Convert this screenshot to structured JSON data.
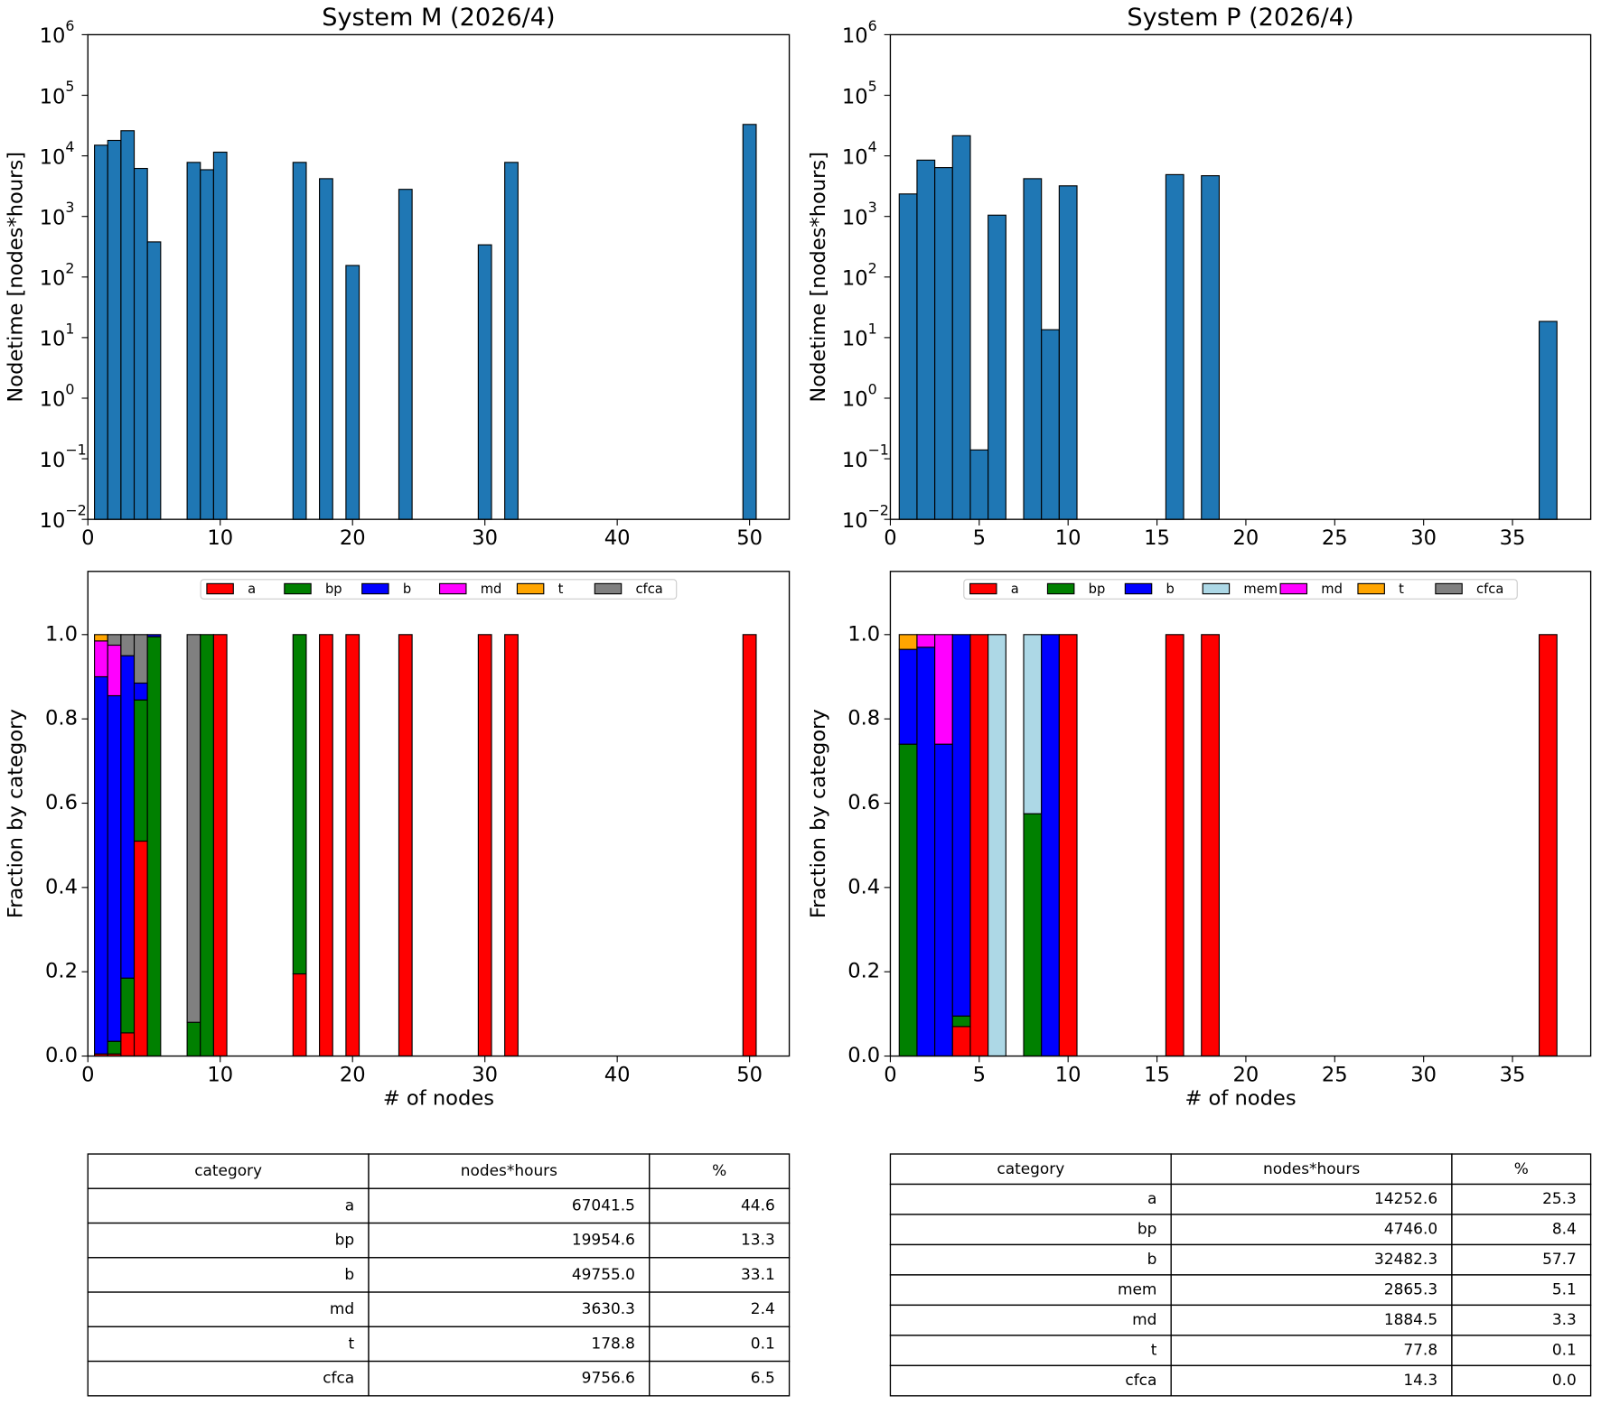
{
  "chart_data": [
    {
      "type": "bar",
      "title": "System M (2026/4)",
      "y_label": "Nodetime [nodes*hours]",
      "x": [
        1,
        2,
        3,
        4,
        5,
        8,
        9,
        10,
        16,
        18,
        20,
        24,
        30,
        32,
        50
      ],
      "values": [
        15000,
        18000,
        26000,
        6200,
        380,
        7800,
        5900,
        11500,
        7800,
        4200,
        155,
        2800,
        340,
        7800,
        33000
      ],
      "color": "#1f77b4",
      "edgecolor": "#000000",
      "log_scale": true,
      "xlim": [
        0,
        53
      ],
      "xticks": [
        0,
        10,
        20,
        30,
        40,
        50
      ],
      "ylim": [
        0.01,
        1000000
      ],
      "yticks": [
        {
          "value": 0.01,
          "label": "10",
          "exponent": "−2"
        },
        {
          "value": 0.1,
          "label": "10",
          "exponent": "−1"
        },
        {
          "value": 1,
          "label": "10",
          "exponent": "0"
        },
        {
          "value": 10,
          "label": "10",
          "exponent": "1"
        },
        {
          "value": 100,
          "label": "10",
          "exponent": "2"
        },
        {
          "value": 1000,
          "label": "10",
          "exponent": "3"
        },
        {
          "value": 10000,
          "label": "10",
          "exponent": "4"
        },
        {
          "value": 100000,
          "label": "10",
          "exponent": "5"
        },
        {
          "value": 1000000,
          "label": "10",
          "exponent": "6"
        }
      ]
    },
    {
      "type": "bar",
      "title": "System P (2026/4)",
      "y_label": "Nodetime [nodes*hours]",
      "x": [
        1,
        2,
        3,
        4,
        5,
        6,
        8,
        9,
        10,
        16,
        18,
        37
      ],
      "values": [
        2350,
        8500,
        6400,
        21500,
        0.14,
        1050,
        4200,
        13.5,
        3200,
        4900,
        4700,
        18.5
      ],
      "color": "#1f77b4",
      "edgecolor": "#000000",
      "log_scale": true,
      "xlim": [
        0,
        39.4
      ],
      "xticks": [
        0,
        5,
        10,
        15,
        20,
        25,
        30,
        35
      ],
      "ylim": [
        0.01,
        1000000
      ],
      "yticks": [
        {
          "value": 0.01,
          "label": "10",
          "exponent": "−2"
        },
        {
          "value": 0.1,
          "label": "10",
          "exponent": "−1"
        },
        {
          "value": 1,
          "label": "10",
          "exponent": "0"
        },
        {
          "value": 10,
          "label": "10",
          "exponent": "1"
        },
        {
          "value": 100,
          "label": "10",
          "exponent": "2"
        },
        {
          "value": 1000,
          "label": "10",
          "exponent": "3"
        },
        {
          "value": 10000,
          "label": "10",
          "exponent": "4"
        },
        {
          "value": 100000,
          "label": "10",
          "exponent": "5"
        },
        {
          "value": 1000000,
          "label": "10",
          "exponent": "6"
        }
      ]
    },
    {
      "type": "stacked_bar",
      "y_label": "Fraction by category",
      "x_label": "# of nodes",
      "x": [
        1,
        2,
        3,
        4,
        5,
        8,
        9,
        10,
        16,
        18,
        20,
        24,
        30,
        32,
        50
      ],
      "series": [
        {
          "name": "a",
          "color": "#ff0000",
          "values": [
            0.005,
            0.005,
            0.055,
            0.51,
            0,
            0,
            0,
            1,
            0.195,
            1,
            1,
            1,
            1,
            1,
            1
          ]
        },
        {
          "name": "bp",
          "color": "#008000",
          "values": [
            0,
            0.03,
            0.13,
            0.335,
            0.995,
            0.08,
            1,
            0,
            0.805,
            0,
            0,
            0,
            0,
            0,
            0
          ]
        },
        {
          "name": "b",
          "color": "#0000ff",
          "values": [
            0.895,
            0.82,
            0.765,
            0.04,
            0.005,
            0,
            0,
            0,
            0,
            0,
            0,
            0,
            0,
            0,
            0
          ]
        },
        {
          "name": "md",
          "color": "#ff00ff",
          "values": [
            0.085,
            0.12,
            0,
            0,
            0,
            0,
            0,
            0,
            0,
            0,
            0,
            0,
            0,
            0,
            0
          ]
        },
        {
          "name": "t",
          "color": "#ffa500",
          "values": [
            0.015,
            0,
            0,
            0,
            0,
            0,
            0,
            0,
            0,
            0,
            0,
            0,
            0,
            0,
            0
          ]
        },
        {
          "name": "cfca",
          "color": "#808080",
          "values": [
            0,
            0.025,
            0.05,
            0.115,
            0,
            0.92,
            0,
            0,
            0,
            0,
            0,
            0,
            0,
            0,
            0
          ]
        }
      ],
      "edgecolor": "#000000",
      "legend": "upper center",
      "xlim": [
        0,
        53
      ],
      "xticks": [
        0,
        10,
        20,
        30,
        40,
        50
      ],
      "ylim": [
        0,
        1.15
      ],
      "yticks": [
        {
          "value": 0,
          "label": "0.0"
        },
        0.2,
        0.4,
        0.6,
        0.8,
        {
          "value": 1,
          "label": "1.0"
        }
      ]
    },
    {
      "type": "stacked_bar",
      "y_label": "Fraction by category",
      "x_label": "# of nodes",
      "x": [
        1,
        2,
        3,
        4,
        5,
        6,
        8,
        9,
        10,
        16,
        18,
        37
      ],
      "series": [
        {
          "name": "a",
          "color": "#ff0000",
          "values": [
            0,
            0,
            0,
            0.07,
            1,
            0,
            0,
            0,
            1,
            1,
            1,
            1
          ]
        },
        {
          "name": "bp",
          "color": "#008000",
          "values": [
            0.74,
            0,
            0,
            0.025,
            0,
            0,
            0.575,
            0,
            0,
            0,
            0,
            0
          ]
        },
        {
          "name": "b",
          "color": "#0000ff",
          "values": [
            0.225,
            0.97,
            0.74,
            0.905,
            0,
            0,
            0,
            1,
            0,
            0,
            0,
            0
          ]
        },
        {
          "name": "mem",
          "color": "#add8e6",
          "values": [
            0,
            0,
            0,
            0,
            0,
            1,
            0.425,
            0,
            0,
            0,
            0,
            0
          ]
        },
        {
          "name": "md",
          "color": "#ff00ff",
          "values": [
            0,
            0.03,
            0.26,
            0,
            0,
            0,
            0,
            0,
            0,
            0,
            0,
            0
          ]
        },
        {
          "name": "t",
          "color": "#ffa500",
          "values": [
            0.035,
            0,
            0,
            0,
            0,
            0,
            0,
            0,
            0,
            0,
            0,
            0
          ]
        },
        {
          "name": "cfca",
          "color": "#808080",
          "values": [
            0,
            0,
            0,
            0,
            0,
            0,
            0,
            0,
            0,
            0,
            0,
            0
          ]
        }
      ],
      "edgecolor": "#000000",
      "legend": "upper center",
      "xlim": [
        0,
        39.4
      ],
      "xticks": [
        0,
        5,
        10,
        15,
        20,
        25,
        30,
        35
      ],
      "ylim": [
        0,
        1.15
      ],
      "yticks": [
        {
          "value": 0,
          "label": "0.0"
        },
        0.2,
        0.4,
        0.6,
        0.8,
        {
          "value": 1,
          "label": "1.0"
        }
      ]
    }
  ],
  "tables": [
    {
      "header": [
        "category",
        "nodes*hours",
        "%"
      ],
      "rows": [
        [
          "a",
          "67041.5",
          "44.6"
        ],
        [
          "bp",
          "19954.6",
          "13.3"
        ],
        [
          "b",
          "49755.0",
          "33.1"
        ],
        [
          "md",
          "3630.3",
          "2.4"
        ],
        [
          "t",
          "178.8",
          "0.1"
        ],
        [
          "cfca",
          "9756.6",
          "6.5"
        ]
      ]
    },
    {
      "header": [
        "category",
        "nodes*hours",
        "%"
      ],
      "rows": [
        [
          "a",
          "14252.6",
          "25.3"
        ],
        [
          "bp",
          "4746.0",
          "8.4"
        ],
        [
          "b",
          "32482.3",
          "57.7"
        ],
        [
          "mem",
          "2865.3",
          "5.1"
        ],
        [
          "md",
          "1884.5",
          "3.3"
        ],
        [
          "t",
          "77.8",
          "0.1"
        ],
        [
          "cfca",
          "14.3",
          "0.0"
        ]
      ]
    }
  ]
}
